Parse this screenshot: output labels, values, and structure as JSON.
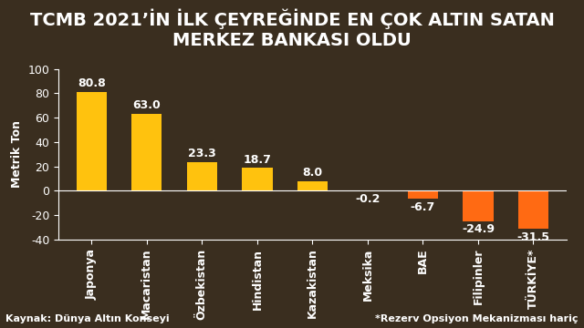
{
  "chart_data": {
    "type": "bar",
    "title": "TCMB 2021’İN İLK ÇEYREĞİNDE EN ÇOK ALTIN SATAN MERKEZ BANKASI OLDU",
    "y_label": "Metrik Ton",
    "categories": [
      "Japonya",
      "Macaristan",
      "Özbekistan",
      "Hindistan",
      "Kazakistan",
      "Meksika",
      "BAE",
      "Filipinler",
      "TÜRKİYE*"
    ],
    "values": [
      80.8,
      63.0,
      23.3,
      18.7,
      8.0,
      -0.2,
      -6.7,
      -24.9,
      -31.5
    ],
    "value_labels": [
      "80.8",
      "63.0",
      "23.3",
      "18.7",
      "8.0",
      "-0.2",
      "-6.7",
      "-24.9",
      "-31.5"
    ],
    "colors": [
      "#FFC20E",
      "#FFC20E",
      "#FFC20E",
      "#FFC20E",
      "#FFC20E",
      "#FF6A13",
      "#FF6A13",
      "#FF6A13",
      "#FF6A13"
    ],
    "ylim": [
      -40,
      100
    ],
    "yticks": [
      -40,
      -20,
      0,
      20,
      40,
      60,
      80,
      100
    ],
    "grid": false,
    "data_labels": true,
    "annotations": [
      "Kaynak: Dünya Altın Konseyi",
      "*Rezerv Opsiyon Mekanizması hariç"
    ]
  }
}
